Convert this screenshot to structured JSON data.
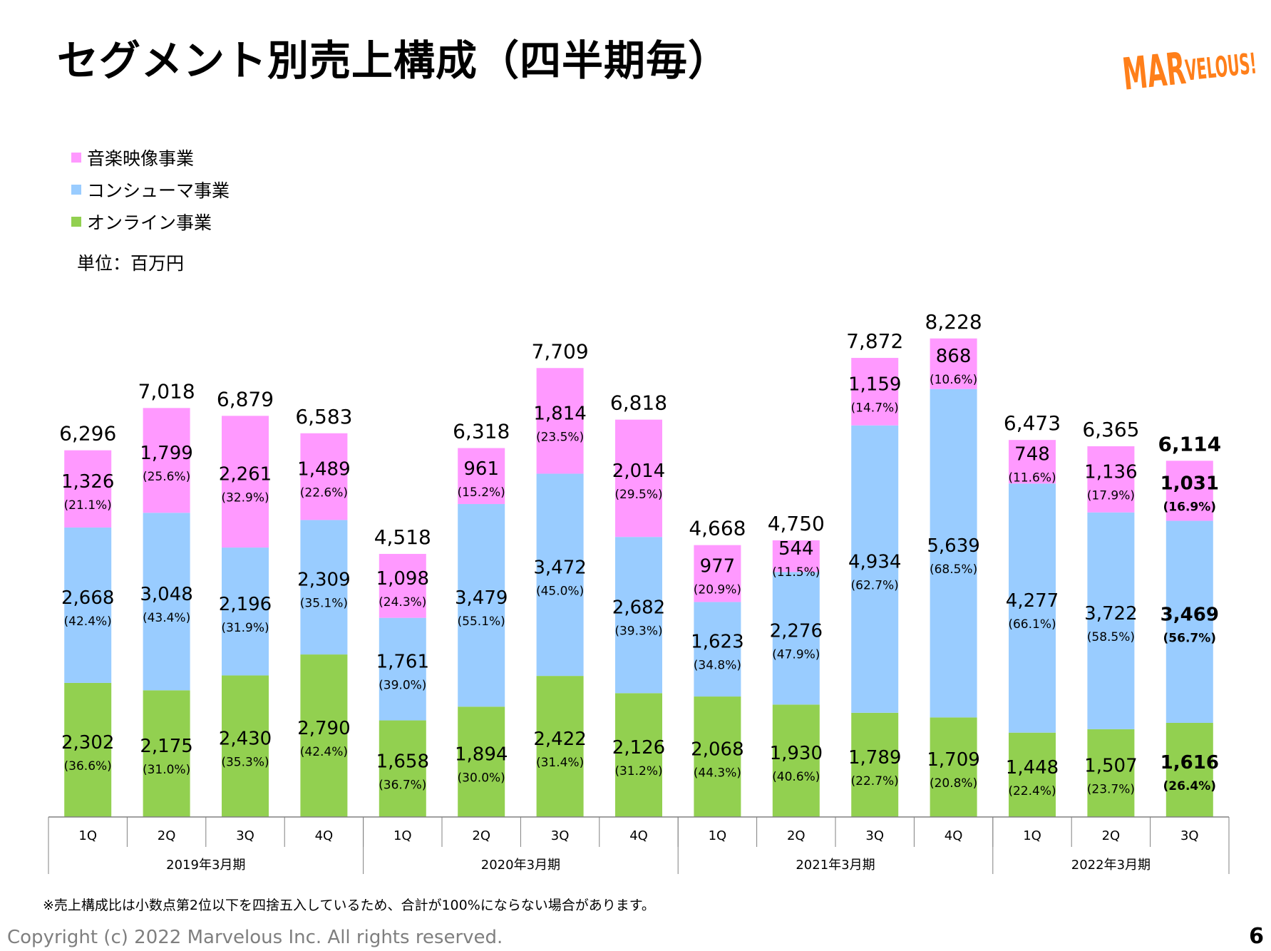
{
  "slide": {
    "title": "セグメント別売上構成（四半期毎）",
    "logo_text": "MARVELOUS!",
    "unit": "単位：百万円",
    "footnote": "※売上構成比は小数点第2位以下を四捨五入しているため、合計が100%にならない場合があります。",
    "copyright": "Copyright (c) 2022 Marvelous Inc. All rights reserved.",
    "page_number": "6",
    "colors": {
      "online": "#92d050",
      "consumer": "#99ccff",
      "music": "#ff99ff",
      "logo": "#ff7f1a",
      "copyright": "#7f7f7f"
    }
  },
  "legend": [
    {
      "label": "音楽映像事業",
      "color": "#ff99ff"
    },
    {
      "label": "コンシューマ事業",
      "color": "#99ccff"
    },
    {
      "label": "オンライン事業",
      "color": "#92d050"
    }
  ],
  "chart_data": {
    "type": "bar",
    "stacked": true,
    "categories": [
      "1Q",
      "2Q",
      "3Q",
      "4Q",
      "1Q",
      "2Q",
      "3Q",
      "4Q",
      "1Q",
      "2Q",
      "3Q",
      "4Q",
      "1Q",
      "2Q",
      "3Q"
    ],
    "groups": [
      {
        "label": "2019年3月期",
        "count": 4
      },
      {
        "label": "2020年3月期",
        "count": 4
      },
      {
        "label": "2021年3月期",
        "count": 4
      },
      {
        "label": "2022年3月期",
        "count": 3
      }
    ],
    "totals": [
      "6,296",
      "7,018",
      "6,879",
      "6,583",
      "4,518",
      "6,318",
      "7,709",
      "6,818",
      "4,668",
      "4,750",
      "7,872",
      "8,228",
      "6,473",
      "6,365",
      "6,114"
    ],
    "series": [
      {
        "name": "オンライン事業",
        "color": "#92d050",
        "values": [
          2302,
          2175,
          2430,
          2790,
          1658,
          1894,
          2422,
          2126,
          2068,
          1930,
          1789,
          1709,
          1448,
          1507,
          1616
        ],
        "labels": [
          "2,302",
          "2,175",
          "2,430",
          "2,790",
          "1,658",
          "1,894",
          "2,422",
          "2,126",
          "2,068",
          "1,930",
          "1,789",
          "1,709",
          "1,448",
          "1,507",
          "1,616"
        ],
        "pct": [
          "(36.6%)",
          "(31.0%)",
          "(35.3%)",
          "(42.4%)",
          "(36.7%)",
          "(30.0%)",
          "(31.4%)",
          "(31.2%)",
          "(44.3%)",
          "(40.6%)",
          "(22.7%)",
          "(20.8%)",
          "(22.4%)",
          "(23.7%)",
          "(26.4%)"
        ]
      },
      {
        "name": "コンシューマ事業",
        "color": "#99ccff",
        "values": [
          2668,
          3048,
          2196,
          2309,
          1761,
          3479,
          3472,
          2682,
          1623,
          2276,
          4934,
          5639,
          4277,
          3722,
          3469
        ],
        "labels": [
          "2,668",
          "3,048",
          "2,196",
          "2,309",
          "1,761",
          "3,479",
          "3,472",
          "2,682",
          "1,623",
          "2,276",
          "4,934",
          "5,639",
          "4,277",
          "3,722",
          "3,469"
        ],
        "pct": [
          "(42.4%)",
          "(43.4%)",
          "(31.9%)",
          "(35.1%)",
          "(39.0%)",
          "(55.1%)",
          "(45.0%)",
          "(39.3%)",
          "(34.8%)",
          "(47.9%)",
          "(62.7%)",
          "(68.5%)",
          "(66.1%)",
          "(58.5%)",
          "(56.7%)"
        ]
      },
      {
        "name": "音楽映像事業",
        "color": "#ff99ff",
        "values": [
          1326,
          1799,
          2261,
          1489,
          1098,
          961,
          1814,
          2014,
          977,
          544,
          1159,
          868,
          748,
          1136,
          1031
        ],
        "labels": [
          "1,326",
          "1,799",
          "2,261",
          "1,489",
          "1,098",
          "961",
          "1,814",
          "2,014",
          "977",
          "544",
          "1,159",
          "868",
          "748",
          "1,136",
          "1,031"
        ],
        "pct": [
          "(21.1%)",
          "(25.6%)",
          "(32.9%)",
          "(22.6%)",
          "(24.3%)",
          "(15.2%)",
          "(23.5%)",
          "(29.5%)",
          "(20.9%)",
          "(11.5%)",
          "(14.7%)",
          "(10.6%)",
          "(11.6%)",
          "(17.9%)",
          "(16.9%)"
        ]
      }
    ],
    "highlight_last": true,
    "ylim": [
      0,
      8228
    ],
    "grid": false,
    "legend_position": "top-left"
  }
}
